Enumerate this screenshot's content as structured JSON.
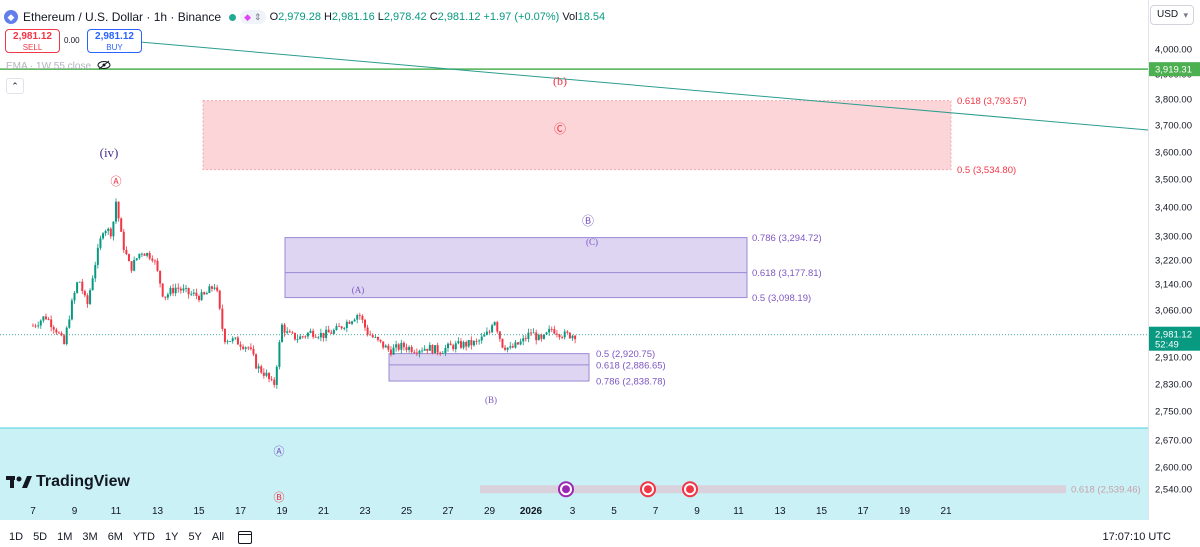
{
  "header": {
    "symbol": "Ethereum / U.S. Dollar · 1h · Binance",
    "ohlc": [
      {
        "k": "O",
        "v": "2,979.28"
      },
      {
        "k": "H",
        "v": "2,981.16"
      },
      {
        "k": "L",
        "v": "2,978.42"
      },
      {
        "k": "C",
        "v": "2,981.12"
      }
    ],
    "change": "+1.97 (+0.07%)",
    "vol_label": "Vol",
    "vol_value": "18.54"
  },
  "trade": {
    "sell_price": "2,981.12",
    "sell_label": "SELL",
    "spread": "0.00",
    "buy_price": "2,981.12",
    "buy_label": "BUY"
  },
  "indicator": {
    "ema_label": "EMA · 1W 55 close"
  },
  "currency": "USD",
  "branding": "TradingView",
  "timeframes": [
    "1D",
    "5D",
    "1M",
    "3M",
    "6M",
    "YTD",
    "1Y",
    "5Y",
    "All"
  ],
  "clock": "17:07:10 UTC",
  "colors": {
    "up": "#089981",
    "down": "#f23645",
    "ema": "#4caf50",
    "trendline": "#2a9d8f",
    "fib_red": "#f23645",
    "fib_purple": "#7e57c2",
    "last_price": "#089981"
  },
  "chart_data": {
    "type": "candlestick",
    "y_axis": {
      "ticks": [
        4000,
        3900,
        3800,
        3700,
        3600,
        3500,
        3400,
        3300,
        3220,
        3140,
        3060,
        2910,
        2830,
        2750,
        2670,
        2600,
        2540
      ],
      "tick_labels": [
        "4,000.00",
        "3,900.00",
        "3,800.00",
        "3,700.00",
        "3,600.00",
        "3,500.00",
        "3,400.00",
        "3,300.00",
        "3,220.00",
        "3,140.00",
        "3,060.00",
        "2,910.00",
        "2,830.00",
        "2,750.00",
        "2,670.00",
        "2,600.00",
        "2,540.00"
      ]
    },
    "x_axis": {
      "ticks": [
        "7",
        "9",
        "11",
        "13",
        "15",
        "17",
        "19",
        "21",
        "23",
        "25",
        "27",
        "29",
        "2026",
        "3",
        "5",
        "7",
        "9",
        "11",
        "13",
        "15",
        "17",
        "19",
        "21"
      ]
    },
    "last_price": {
      "label": "2,981.12",
      "countdown": "52:49",
      "value": 2981.12
    },
    "ema_price": {
      "label": "3,919.31",
      "value": 3919.31
    },
    "fib_levels": [
      {
        "label": "0.618 (3,793.57)",
        "value": 3793.57,
        "color": "red"
      },
      {
        "label": "0.5 (3,534.80)",
        "value": 3534.8,
        "color": "red"
      },
      {
        "label": "0.786 (3,294.72)",
        "value": 3294.72,
        "color": "purple"
      },
      {
        "label": "0.618 (3,177.81)",
        "value": 3177.81,
        "color": "purple"
      },
      {
        "label": "0.5 (3,098.19)",
        "value": 3098.19,
        "color": "purple"
      },
      {
        "label": "0.5 (2,920.75)",
        "value": 2920.75,
        "color": "purple"
      },
      {
        "label": "0.618 (2,886.65)",
        "value": 2886.65,
        "color": "purple"
      },
      {
        "label": "0.786 (2,838.78)",
        "value": 2838.78,
        "color": "purple"
      },
      {
        "label": "0.618 (2,539.46)",
        "value": 2539.46,
        "color": "gray"
      }
    ],
    "wave_labels": [
      "(iv)",
      "(b)",
      "Ⓐ",
      "Ⓒ",
      "Ⓑ",
      "(C)",
      "(A)",
      "(B)",
      "Ⓐ",
      "Ⓑ"
    ],
    "price_path": [
      {
        "t": 7,
        "p": 3010
      },
      {
        "t": 7.6,
        "p": 3040
      },
      {
        "t": 8.1,
        "p": 3000
      },
      {
        "t": 8.5,
        "p": 2950
      },
      {
        "t": 8.8,
        "p": 3060
      },
      {
        "t": 9.2,
        "p": 3160
      },
      {
        "t": 9.6,
        "p": 3070
      },
      {
        "t": 10,
        "p": 3210
      },
      {
        "t": 10.4,
        "p": 3330
      },
      {
        "t": 10.8,
        "p": 3310
      },
      {
        "t": 11,
        "p": 3420
      },
      {
        "t": 11.3,
        "p": 3280
      },
      {
        "t": 11.7,
        "p": 3190
      },
      {
        "t": 12.2,
        "p": 3250
      },
      {
        "t": 12.8,
        "p": 3230
      },
      {
        "t": 13.3,
        "p": 3100
      },
      {
        "t": 13.9,
        "p": 3130
      },
      {
        "t": 14.5,
        "p": 3110
      },
      {
        "t": 15.2,
        "p": 3100
      },
      {
        "t": 15.8,
        "p": 3140
      },
      {
        "t": 16.2,
        "p": 2970
      },
      {
        "t": 16.8,
        "p": 2960
      },
      {
        "t": 17.4,
        "p": 2940
      },
      {
        "t": 17.8,
        "p": 2880
      },
      {
        "t": 18.2,
        "p": 2860
      },
      {
        "t": 18.6,
        "p": 2820
      },
      {
        "t": 19.0,
        "p": 3010
      },
      {
        "t": 19.3,
        "p": 2980
      },
      {
        "t": 19.8,
        "p": 2970
      },
      {
        "t": 20.4,
        "p": 2990
      },
      {
        "t": 21.0,
        "p": 2980
      },
      {
        "t": 21.6,
        "p": 2995
      },
      {
        "t": 22.3,
        "p": 3030
      },
      {
        "t": 22.7,
        "p": 3050
      },
      {
        "t": 23.1,
        "p": 2990
      },
      {
        "t": 23.6,
        "p": 2960
      },
      {
        "t": 24.2,
        "p": 2930
      },
      {
        "t": 24.8,
        "p": 2945
      },
      {
        "t": 25.4,
        "p": 2935
      },
      {
        "t": 26.0,
        "p": 2940
      },
      {
        "t": 26.6,
        "p": 2930
      },
      {
        "t": 27.2,
        "p": 2945
      },
      {
        "t": 27.8,
        "p": 2950
      },
      {
        "t": 28.4,
        "p": 2955
      },
      {
        "t": 29.0,
        "p": 2990
      },
      {
        "t": 29.2,
        "p": 3040
      },
      {
        "t": 29.6,
        "p": 2950
      },
      {
        "t": 30.0,
        "p": 2935
      },
      {
        "t": 30.6,
        "p": 2960
      },
      {
        "t": 31.0,
        "p": 2990
      },
      {
        "t": 31.5,
        "p": 2960
      },
      {
        "t": 32.0,
        "p": 3000
      },
      {
        "t": 32.6,
        "p": 2980
      },
      {
        "t": 33.2,
        "p": 2981
      }
    ]
  }
}
